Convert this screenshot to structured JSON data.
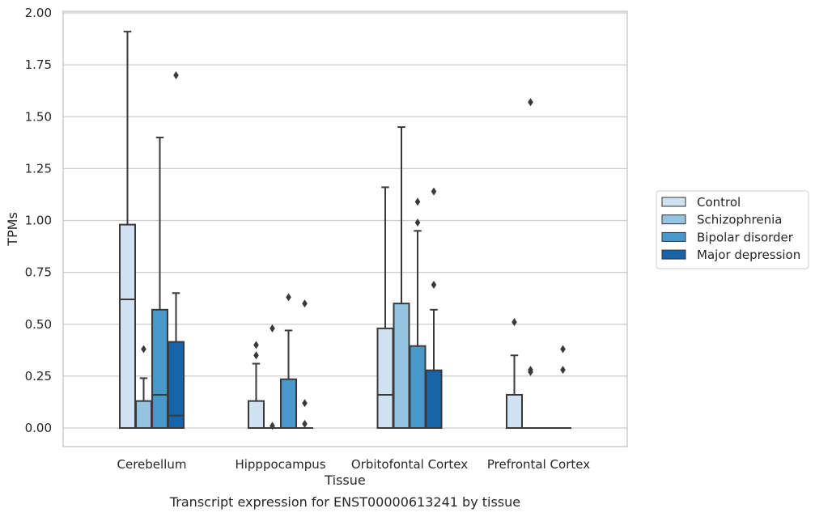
{
  "chart_data": {
    "type": "box",
    "title": "Transcript expression for ENST00000613241 by tissue",
    "xlabel": "Tissue",
    "ylabel": "TPMs",
    "ylim": [
      -0.09,
      2.02
    ],
    "yticks": [
      "0.00",
      "0.25",
      "0.50",
      "0.75",
      "1.00",
      "1.25",
      "1.50",
      "1.75",
      "2.00"
    ],
    "ytick_values": [
      0,
      0.25,
      0.5,
      0.75,
      1.0,
      1.25,
      1.5,
      1.75,
      2.0
    ],
    "grid": true,
    "legend_position": "right",
    "categories": [
      "Cerebellum",
      "Hipppocampus",
      "Orbitofontal Cortex",
      "Prefrontal Cortex"
    ],
    "series": [
      {
        "name": "Control",
        "color": "#d0e1f2",
        "boxes": [
          {
            "whislo": 0,
            "q1": 0,
            "med": 0.62,
            "q3": 0.98,
            "whishi": 1.91,
            "fliers": []
          },
          {
            "whislo": 0,
            "q1": 0,
            "med": 0,
            "q3": 0.13,
            "whishi": 0.31,
            "fliers": [
              0.35,
              0.4
            ]
          },
          {
            "whislo": 0,
            "q1": 0,
            "med": 0.16,
            "q3": 0.48,
            "whishi": 1.16,
            "fliers": []
          },
          {
            "whislo": 0,
            "q1": 0,
            "med": 0,
            "q3": 0.16,
            "whishi": 0.35,
            "fliers": [
              0.51
            ]
          }
        ]
      },
      {
        "name": "Schizophrenia",
        "color": "#94c4df",
        "boxes": [
          {
            "whislo": 0,
            "q1": 0,
            "med": 0,
            "q3": 0.13,
            "whishi": 0.24,
            "fliers": [
              0.38
            ]
          },
          {
            "whislo": 0,
            "q1": 0,
            "med": 0,
            "q3": 0,
            "whishi": 0,
            "fliers": [
              0.01,
              0.48
            ]
          },
          {
            "whislo": 0,
            "q1": 0,
            "med": 0,
            "q3": 0.6,
            "whishi": 1.45,
            "fliers": []
          },
          {
            "whislo": 0,
            "q1": 0,
            "med": 0,
            "q3": 0,
            "whishi": 0,
            "fliers": [
              0.27,
              0.28,
              1.57
            ]
          }
        ]
      },
      {
        "name": "Bipolar disorder",
        "color": "#4a98c9",
        "boxes": [
          {
            "whislo": 0,
            "q1": 0,
            "med": 0.16,
            "q3": 0.57,
            "whishi": 1.4,
            "fliers": []
          },
          {
            "whislo": 0,
            "q1": 0,
            "med": 0,
            "q3": 0.235,
            "whishi": 0.47,
            "fliers": [
              0.63
            ]
          },
          {
            "whislo": 0,
            "q1": 0,
            "med": 0,
            "q3": 0.395,
            "whishi": 0.95,
            "fliers": [
              0.99,
              1.09
            ]
          },
          {
            "whislo": 0,
            "q1": 0,
            "med": 0,
            "q3": 0,
            "whishi": 0,
            "fliers": []
          }
        ]
      },
      {
        "name": "Major depression",
        "color": "#1764ab",
        "boxes": [
          {
            "whislo": 0,
            "q1": 0,
            "med": 0.06,
            "q3": 0.415,
            "whishi": 0.65,
            "fliers": [
              1.7
            ]
          },
          {
            "whislo": 0,
            "q1": 0,
            "med": 0,
            "q3": 0,
            "whishi": 0,
            "fliers": [
              0.02,
              0.12,
              0.6
            ]
          },
          {
            "whislo": 0,
            "q1": 0,
            "med": 0,
            "q3": 0.278,
            "whishi": 0.57,
            "fliers": [
              0.69,
              1.14
            ]
          },
          {
            "whislo": 0,
            "q1": 0,
            "med": 0,
            "q3": 0,
            "whishi": 0,
            "fliers": [
              0.28,
              0.38
            ]
          }
        ]
      }
    ]
  }
}
